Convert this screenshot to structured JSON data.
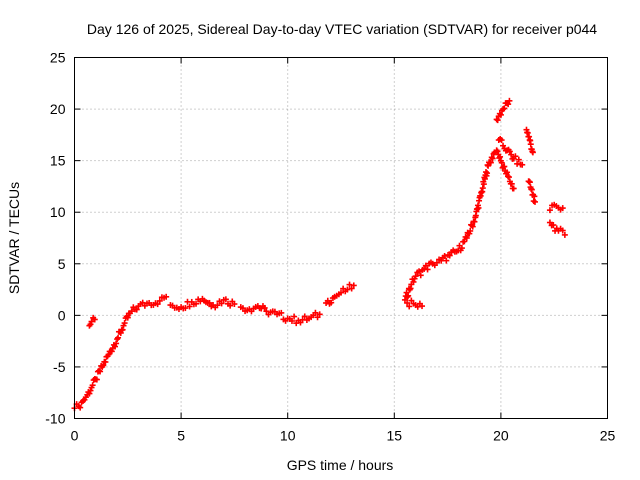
{
  "chart_data": {
    "type": "scatter",
    "title": "Day 126 of 2025, Sidereal Day-to-day VTEC variation (SDTVAR) for receiver p044",
    "xlabel": "GPS time / hours",
    "ylabel": "SDTVAR / TECUs",
    "xlim": [
      0,
      25
    ],
    "ylim": [
      -10,
      25
    ],
    "xticks": [
      0,
      5,
      10,
      15,
      20,
      25
    ],
    "yticks": [
      -10,
      -5,
      0,
      5,
      10,
      15,
      20,
      25
    ],
    "grid": true,
    "marker": "plus",
    "color": "#ff0000",
    "segments": [
      {
        "x": [
          0.0,
          0.2,
          0.4,
          0.6,
          0.8,
          1.0,
          1.3,
          1.6,
          2.0,
          2.3,
          2.6,
          3.0,
          3.5,
          4.0,
          4.3
        ],
        "y": [
          -9.0,
          -8.8,
          -8.3,
          -7.7,
          -7.0,
          -6.2,
          -5.0,
          -3.8,
          -2.3,
          -1.0,
          0.2,
          0.9,
          1.2,
          1.4,
          1.8
        ]
      },
      {
        "x": [
          0.7,
          0.8,
          0.95
        ],
        "y": [
          -1.0,
          -0.6,
          -0.4
        ]
      },
      {
        "x": [
          4.5,
          5.0,
          5.5,
          6.0,
          6.5,
          7.0,
          7.5
        ],
        "y": [
          1.0,
          0.8,
          1.3,
          1.6,
          1.0,
          1.5,
          1.1
        ]
      },
      {
        "x": [
          7.8,
          8.2,
          8.6,
          9.0,
          9.5,
          10.0,
          10.5,
          11.0,
          11.5
        ],
        "y": [
          0.8,
          0.6,
          0.9,
          0.4,
          0.1,
          -0.3,
          -0.5,
          -0.3,
          0.1
        ]
      },
      {
        "x": [
          11.8,
          12.2,
          12.5,
          12.8,
          13.1
        ],
        "y": [
          1.2,
          1.8,
          2.2,
          2.5,
          2.9
        ]
      },
      {
        "x": [
          15.5,
          15.8,
          16.0,
          16.4,
          16.8,
          17.2,
          17.6,
          18.0,
          18.4,
          18.8,
          19.1,
          19.4,
          19.7
        ],
        "y": [
          1.5,
          3.0,
          3.8,
          4.5,
          5.0,
          5.3,
          5.8,
          6.3,
          7.5,
          9.5,
          12.0,
          14.5,
          15.8
        ]
      },
      {
        "x": [
          15.6,
          16.0,
          16.3
        ],
        "y": [
          1.2,
          1.0,
          0.9
        ]
      },
      {
        "x": [
          19.8,
          20.1,
          20.4
        ],
        "y": [
          19.0,
          20.0,
          20.8
        ]
      },
      {
        "x": [
          19.9,
          20.3,
          20.6,
          21.0
        ],
        "y": [
          17.0,
          16.0,
          15.2,
          14.6
        ]
      },
      {
        "x": [
          19.8,
          20.2,
          20.6
        ],
        "y": [
          16.0,
          14.0,
          12.3
        ]
      },
      {
        "x": [
          21.2,
          21.35,
          21.5
        ],
        "y": [
          18.0,
          17.0,
          15.8
        ]
      },
      {
        "x": [
          21.3,
          21.6
        ],
        "y": [
          13.0,
          11.0
        ]
      },
      {
        "x": [
          22.3,
          22.6,
          22.9
        ],
        "y": [
          10.2,
          10.6,
          10.4
        ]
      },
      {
        "x": [
          22.3,
          22.7,
          23.0
        ],
        "y": [
          9.0,
          8.2,
          7.8
        ]
      }
    ]
  }
}
